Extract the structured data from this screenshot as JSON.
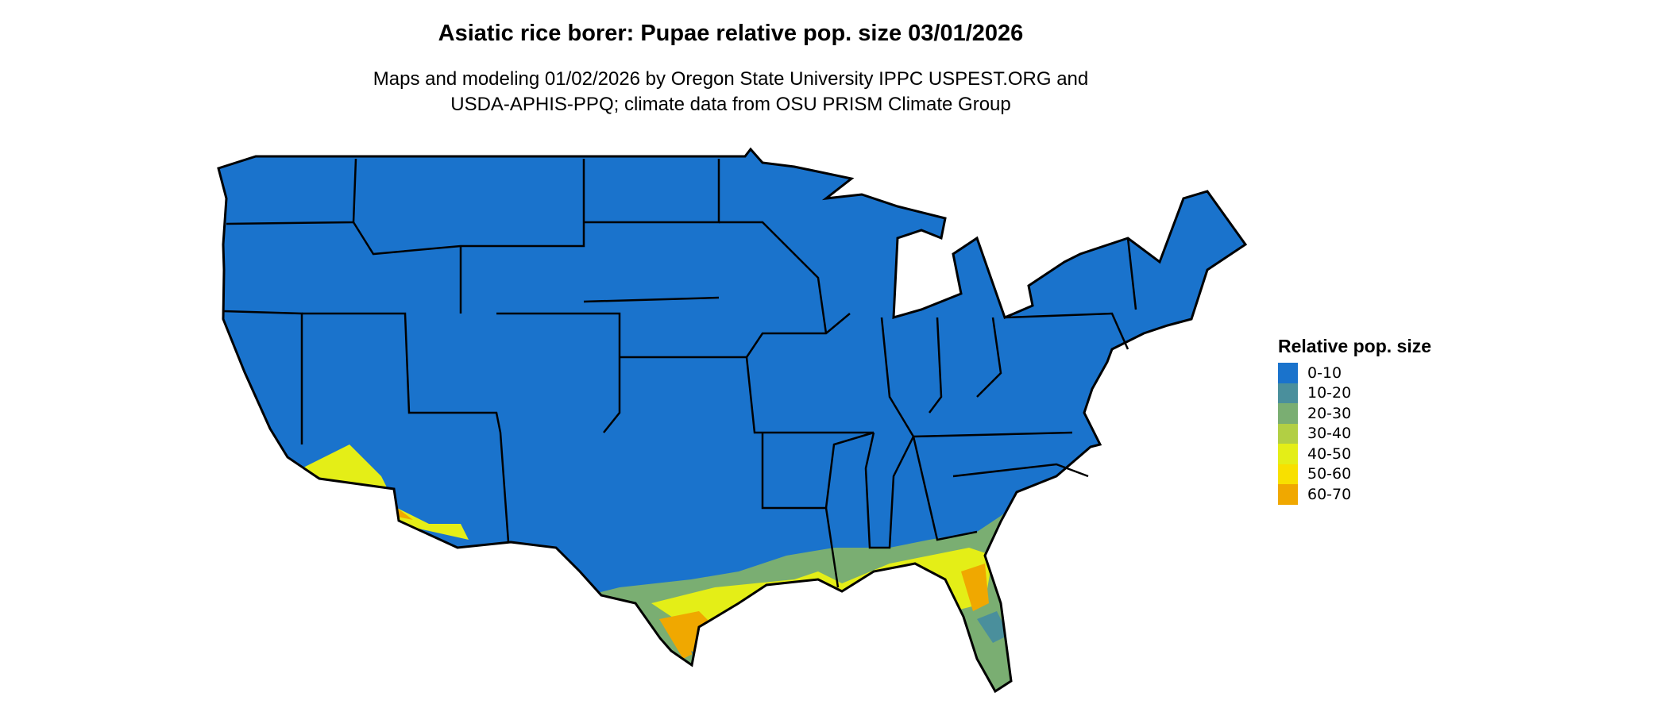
{
  "title": "Asiatic rice borer: Pupae relative pop. size 03/01/2026",
  "subtitle_line1": "Maps and modeling 01/02/2026 by Oregon State University IPPC USPEST.ORG and",
  "subtitle_line2": "USDA-APHIS-PPQ; climate data from OSU PRISM Climate Group",
  "map": {
    "region": "Contiguous United States",
    "base_color": "#1a73cc",
    "boundary_color": "#000000"
  },
  "legend": {
    "title": "Relative pop. size",
    "items": [
      {
        "label": "0-10",
        "color": "#1a73cc"
      },
      {
        "label": "10-20",
        "color": "#4a8f9c"
      },
      {
        "label": "20-30",
        "color": "#7aae72"
      },
      {
        "label": "30-40",
        "color": "#b2cf44"
      },
      {
        "label": "40-50",
        "color": "#e4ee17"
      },
      {
        "label": "50-60",
        "color": "#f8e000"
      },
      {
        "label": "60-70",
        "color": "#f0a800"
      }
    ]
  }
}
